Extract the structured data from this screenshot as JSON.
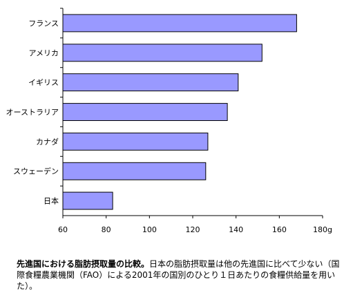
{
  "chart_data": {
    "type": "bar",
    "orientation": "horizontal",
    "categories": [
      "フランス",
      "アメリカ",
      "イギリス",
      "オーストラリア",
      "カナダ",
      "スウェーデン",
      "日本"
    ],
    "values": [
      168,
      152,
      141,
      136,
      127,
      126,
      83
    ],
    "xlim": [
      60,
      180
    ],
    "x_ticks": [
      "60",
      "80",
      "100",
      "120",
      "140",
      "160",
      "180g"
    ],
    "grid": false,
    "legend": "none",
    "bar_color": "#9999ff",
    "bar_edge_color": "#000000"
  },
  "caption": {
    "title": "先進国における脂肪摂取量の比較。",
    "text": "日本の脂肪摂取量は他の先進国に比べて少ない（国際食糧農業機関（FAO）による2001年の国別のひとり１日あたりの食糧供給量を用いた）。"
  }
}
